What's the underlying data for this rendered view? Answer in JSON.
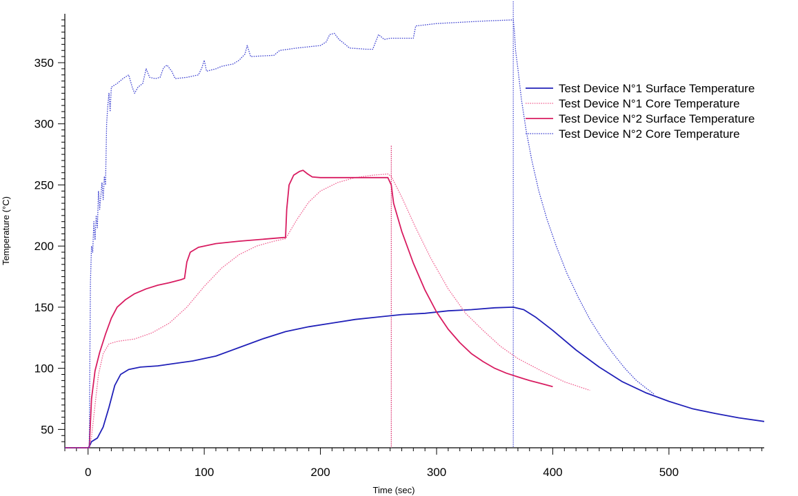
{
  "chart_data": {
    "type": "line",
    "xlabel": "Time (sec)",
    "ylabel": "Temperature (°C)",
    "xlim": [
      -20,
      582
    ],
    "ylim": [
      35,
      390
    ],
    "x_ticks": [
      0,
      100,
      200,
      300,
      400,
      500
    ],
    "y_ticks": [
      50,
      100,
      150,
      200,
      250,
      300,
      350
    ],
    "grid": false,
    "legend_position": "right",
    "vlines": [
      {
        "x": 261,
        "color": "#d81b60"
      },
      {
        "x": 366,
        "color": "#3a3fd0"
      }
    ],
    "series": [
      {
        "name": "Test Device N°1 Surface Temperature",
        "color": "#2020b8",
        "dash": "solid",
        "points": [
          [
            -20,
            35
          ],
          [
            0,
            35
          ],
          [
            1,
            36
          ],
          [
            3,
            40
          ],
          [
            8,
            43
          ],
          [
            13,
            52
          ],
          [
            18,
            68
          ],
          [
            23,
            86
          ],
          [
            28,
            95
          ],
          [
            35,
            99
          ],
          [
            45,
            101
          ],
          [
            60,
            102
          ],
          [
            75,
            104
          ],
          [
            90,
            106
          ],
          [
            110,
            110
          ],
          [
            130,
            117
          ],
          [
            150,
            124
          ],
          [
            170,
            130
          ],
          [
            190,
            134
          ],
          [
            210,
            137
          ],
          [
            230,
            140
          ],
          [
            250,
            142
          ],
          [
            270,
            144
          ],
          [
            290,
            145
          ],
          [
            310,
            147
          ],
          [
            330,
            148
          ],
          [
            350,
            149.5
          ],
          [
            366,
            150
          ],
          [
            375,
            148
          ],
          [
            385,
            142
          ],
          [
            400,
            131
          ],
          [
            420,
            115
          ],
          [
            440,
            101
          ],
          [
            460,
            89
          ],
          [
            480,
            80
          ],
          [
            500,
            73
          ],
          [
            520,
            67
          ],
          [
            540,
            63
          ],
          [
            560,
            59.5
          ],
          [
            582,
            56.5
          ]
        ]
      },
      {
        "name": "Test Device N°1 Core Temperature",
        "color": "#f06090",
        "dash": "dotted",
        "points": [
          [
            -20,
            35
          ],
          [
            1,
            35
          ],
          [
            3,
            44
          ],
          [
            6,
            70
          ],
          [
            9,
            95
          ],
          [
            13,
            112
          ],
          [
            18,
            120
          ],
          [
            25,
            122
          ],
          [
            40,
            124
          ],
          [
            55,
            129
          ],
          [
            70,
            137
          ],
          [
            85,
            150
          ],
          [
            100,
            167
          ],
          [
            115,
            182
          ],
          [
            130,
            193
          ],
          [
            145,
            200
          ],
          [
            160,
            204
          ],
          [
            170,
            206
          ],
          [
            180,
            222
          ],
          [
            190,
            236
          ],
          [
            200,
            245
          ],
          [
            215,
            252
          ],
          [
            230,
            256
          ],
          [
            245,
            258
          ],
          [
            258,
            259
          ],
          [
            261,
            257
          ],
          [
            270,
            240
          ],
          [
            282,
            215
          ],
          [
            295,
            190
          ],
          [
            310,
            165
          ],
          [
            325,
            145
          ],
          [
            340,
            131
          ],
          [
            355,
            118
          ],
          [
            370,
            108
          ],
          [
            390,
            98
          ],
          [
            410,
            89
          ],
          [
            432,
            82
          ]
        ]
      },
      {
        "name": "Test Device N°2 Surface Temperature",
        "color": "#d81b60",
        "dash": "solid",
        "points": [
          [
            -20,
            35
          ],
          [
            1,
            35
          ],
          [
            3,
            75
          ],
          [
            6,
            98
          ],
          [
            10,
            113
          ],
          [
            15,
            128
          ],
          [
            20,
            141
          ],
          [
            25,
            150
          ],
          [
            32,
            156
          ],
          [
            40,
            161
          ],
          [
            50,
            165
          ],
          [
            60,
            168
          ],
          [
            70,
            170
          ],
          [
            80,
            172.5
          ],
          [
            83,
            173.5
          ],
          [
            85,
            187
          ],
          [
            88,
            195
          ],
          [
            95,
            199
          ],
          [
            110,
            202
          ],
          [
            130,
            204
          ],
          [
            150,
            205.5
          ],
          [
            168,
            207
          ],
          [
            170,
            207
          ],
          [
            171,
            230
          ],
          [
            173,
            250
          ],
          [
            177,
            258
          ],
          [
            182,
            261
          ],
          [
            185,
            262
          ],
          [
            189,
            259
          ],
          [
            193,
            256.5
          ],
          [
            200,
            256
          ],
          [
            230,
            256
          ],
          [
            258,
            256
          ],
          [
            261,
            250
          ],
          [
            263,
            235
          ],
          [
            270,
            212
          ],
          [
            280,
            186
          ],
          [
            290,
            164
          ],
          [
            300,
            146
          ],
          [
            310,
            132
          ],
          [
            320,
            121
          ],
          [
            330,
            112
          ],
          [
            340,
            105.5
          ],
          [
            350,
            100
          ],
          [
            360,
            96
          ],
          [
            370,
            93
          ],
          [
            380,
            90
          ],
          [
            390,
            87.5
          ],
          [
            400,
            85
          ]
        ]
      },
      {
        "name": "Test Device N°2 Core Temperature",
        "color": "#3a3fd0",
        "dash": "dotted",
        "points": [
          [
            -20,
            35
          ],
          [
            1,
            35
          ],
          [
            2,
            170
          ],
          [
            3,
            200
          ],
          [
            4,
            195
          ],
          [
            5,
            220
          ],
          [
            6,
            205
          ],
          [
            7,
            225
          ],
          [
            8,
            215
          ],
          [
            9,
            245
          ],
          [
            10,
            230
          ],
          [
            12,
            252
          ],
          [
            13,
            238
          ],
          [
            14,
            257
          ],
          [
            15,
            250
          ],
          [
            16,
            300
          ],
          [
            17,
            315
          ],
          [
            18,
            325
          ],
          [
            19,
            310
          ],
          [
            20,
            330
          ],
          [
            25,
            333
          ],
          [
            30,
            337
          ],
          [
            35,
            340
          ],
          [
            38,
            330
          ],
          [
            40,
            325
          ],
          [
            43,
            330
          ],
          [
            47,
            333
          ],
          [
            50,
            345
          ],
          [
            53,
            338
          ],
          [
            58,
            337
          ],
          [
            62,
            338
          ],
          [
            65,
            346
          ],
          [
            68,
            348
          ],
          [
            72,
            343
          ],
          [
            75,
            337
          ],
          [
            85,
            338
          ],
          [
            95,
            340
          ],
          [
            98,
            346
          ],
          [
            100,
            352
          ],
          [
            102,
            343
          ],
          [
            110,
            345
          ],
          [
            115,
            347
          ],
          [
            120,
            348
          ],
          [
            125,
            349
          ],
          [
            130,
            352
          ],
          [
            135,
            357
          ],
          [
            137,
            364
          ],
          [
            140,
            355
          ],
          [
            160,
            356
          ],
          [
            165,
            360
          ],
          [
            180,
            362
          ],
          [
            200,
            364
          ],
          [
            205,
            367
          ],
          [
            208,
            373
          ],
          [
            212,
            374
          ],
          [
            216,
            369
          ],
          [
            220,
            366
          ],
          [
            225,
            362
          ],
          [
            240,
            361
          ],
          [
            245,
            361
          ],
          [
            250,
            373
          ],
          [
            255,
            369
          ],
          [
            260,
            370
          ],
          [
            270,
            370
          ],
          [
            280,
            370
          ],
          [
            282,
            380
          ],
          [
            300,
            382
          ],
          [
            320,
            383
          ],
          [
            340,
            384
          ],
          [
            365,
            385
          ],
          [
            366,
            385
          ],
          [
            367,
            375
          ],
          [
            368,
            360
          ],
          [
            370,
            345
          ],
          [
            373,
            320
          ],
          [
            377,
            295
          ],
          [
            382,
            270
          ],
          [
            388,
            245
          ],
          [
            395,
            222
          ],
          [
            403,
            200
          ],
          [
            412,
            178
          ],
          [
            422,
            158
          ],
          [
            432,
            140
          ],
          [
            442,
            125
          ],
          [
            452,
            112
          ],
          [
            462,
            100
          ],
          [
            472,
            90
          ],
          [
            480,
            84
          ],
          [
            487,
            79
          ]
        ]
      }
    ]
  }
}
